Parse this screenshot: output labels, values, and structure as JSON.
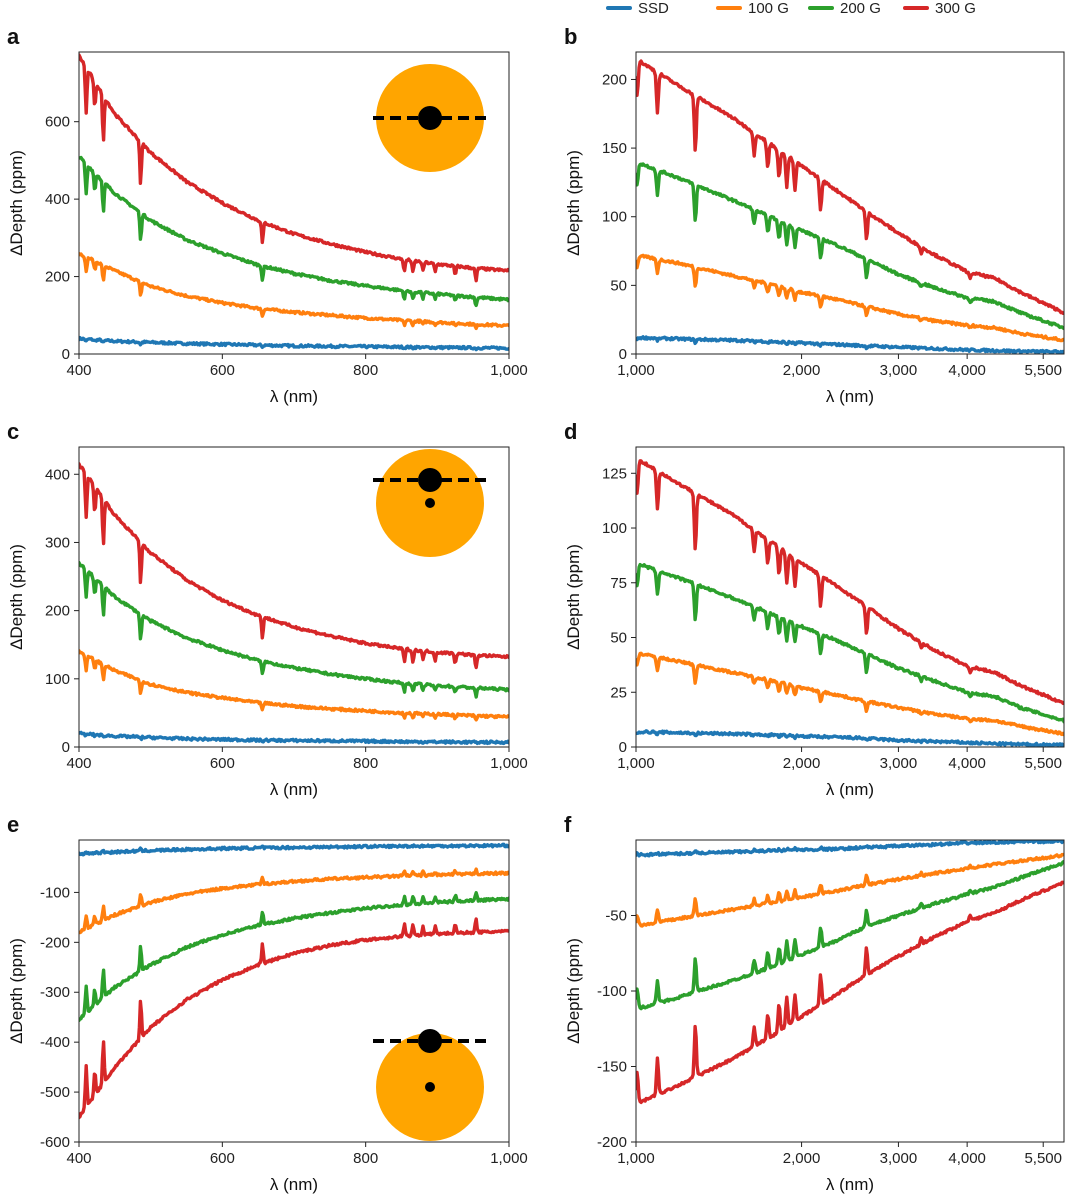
{
  "colors": {
    "SSD": "#1f77b4",
    "100 G": "#ff7f0e",
    "200 G": "#2ca02c",
    "300 G": "#d62728",
    "star": "#ffa500",
    "planet": "#000000"
  },
  "legend": [
    "SSD",
    "100 G",
    "200 G",
    "300 G"
  ],
  "chart_data": [
    {
      "panel": "a",
      "type": "line",
      "xscale": "linear",
      "xlabel": "λ (nm)",
      "ylabel": "ΔDepth (ppm)",
      "xlim": [
        400,
        1000
      ],
      "ylim": [
        0,
        780
      ],
      "xticks": [
        400,
        600,
        800,
        1000
      ],
      "xticklabels": [
        "400",
        "600",
        "800",
        "1,000"
      ],
      "yticks": [
        0,
        200,
        400,
        600
      ],
      "yticklabels": [
        "0",
        "200",
        "400",
        "600"
      ],
      "x": [
        400,
        450,
        500,
        550,
        600,
        650,
        700,
        750,
        800,
        850,
        900,
        950,
        1000
      ],
      "series": [
        {
          "name": "SSD",
          "values": [
            40,
            33,
            30,
            27,
            25,
            23,
            21,
            20,
            19,
            18,
            17,
            16,
            15
          ]
        },
        {
          "name": "100 G",
          "values": [
            260,
            215,
            175,
            150,
            132,
            118,
            108,
            100,
            93,
            87,
            82,
            77,
            73
          ]
        },
        {
          "name": "200 G",
          "values": [
            510,
            415,
            345,
            295,
            260,
            230,
            208,
            190,
            176,
            164,
            155,
            147,
            140
          ]
        },
        {
          "name": "300 G",
          "values": [
            770,
            620,
            520,
            445,
            390,
            345,
            310,
            285,
            263,
            245,
            232,
            222,
            215
          ]
        }
      ],
      "inset": "transit-center"
    },
    {
      "panel": "b",
      "type": "line",
      "xscale": "log",
      "xlabel": "λ (nm)",
      "ylabel": "ΔDepth (ppm)",
      "xlim": [
        1000,
        6000
      ],
      "ylim": [
        0,
        220
      ],
      "xticks": [
        1000,
        2000,
        3000,
        4000,
        5500
      ],
      "xticklabels": [
        "1,000",
        "2,000",
        "3,000",
        "4,000",
        "5,500"
      ],
      "yticks": [
        0,
        50,
        100,
        150,
        200
      ],
      "yticklabels": [
        "0",
        "50",
        "100",
        "150",
        "200"
      ],
      "x": [
        1000,
        1200,
        1500,
        1800,
        2000,
        2300,
        2600,
        3000,
        3500,
        4000,
        4500,
        5000,
        6000
      ],
      "series": [
        {
          "name": "SSD",
          "values": [
            12,
            11,
            10,
            9,
            8,
            7,
            6,
            5,
            4,
            3,
            2.5,
            2,
            1.5
          ]
        },
        {
          "name": "100 G",
          "values": [
            72,
            66,
            57,
            50,
            45,
            40,
            35,
            29,
            24,
            21,
            19,
            15,
            10
          ]
        },
        {
          "name": "200 G",
          "values": [
            140,
            128,
            112,
            98,
            90,
            80,
            70,
            58,
            48,
            41,
            38,
            30,
            19
          ]
        },
        {
          "name": "300 G",
          "values": [
            215,
            195,
            172,
            150,
            137,
            120,
            105,
            88,
            72,
            60,
            55,
            45,
            30
          ]
        }
      ]
    },
    {
      "panel": "c",
      "type": "line",
      "xscale": "linear",
      "xlabel": "λ (nm)",
      "ylabel": "ΔDepth (ppm)",
      "xlim": [
        400,
        1000
      ],
      "ylim": [
        0,
        440
      ],
      "xticks": [
        400,
        600,
        800,
        1000
      ],
      "xticklabels": [
        "400",
        "600",
        "800",
        "1,000"
      ],
      "yticks": [
        0,
        100,
        200,
        300,
        400
      ],
      "yticklabels": [
        "0",
        "100",
        "200",
        "300",
        "400"
      ],
      "x": [
        400,
        450,
        500,
        550,
        600,
        650,
        700,
        750,
        800,
        850,
        900,
        950,
        1000
      ],
      "series": [
        {
          "name": "SSD",
          "values": [
            20,
            16,
            14,
            12,
            11,
            10,
            9.5,
            9,
            8.5,
            8,
            7.5,
            7,
            7
          ]
        },
        {
          "name": "100 G",
          "values": [
            140,
            112,
            92,
            80,
            72,
            65,
            60,
            56,
            53,
            50,
            48,
            46,
            44
          ]
        },
        {
          "name": "200 G",
          "values": [
            270,
            220,
            185,
            160,
            142,
            127,
            116,
            107,
            100,
            94,
            90,
            87,
            84
          ]
        },
        {
          "name": "300 G",
          "values": [
            415,
            340,
            285,
            245,
            215,
            193,
            176,
            163,
            152,
            144,
            139,
            135,
            132
          ]
        }
      ],
      "inset": "transit-offset"
    },
    {
      "panel": "d",
      "type": "line",
      "xscale": "log",
      "xlabel": "λ (nm)",
      "ylabel": "ΔDepth (ppm)",
      "xlim": [
        1000,
        6000
      ],
      "ylim": [
        0,
        137
      ],
      "xticks": [
        1000,
        2000,
        3000,
        4000,
        5500
      ],
      "xticklabels": [
        "1,000",
        "2,000",
        "3,000",
        "4,000",
        "5,500"
      ],
      "yticks": [
        0,
        25,
        50,
        75,
        100,
        125
      ],
      "yticklabels": [
        "0",
        "25",
        "50",
        "75",
        "100",
        "125"
      ],
      "x": [
        1000,
        1200,
        1500,
        1800,
        2000,
        2300,
        2600,
        3000,
        3500,
        4000,
        4500,
        5000,
        6000
      ],
      "series": [
        {
          "name": "SSD",
          "values": [
            7,
            6.5,
            6,
            5.5,
            5,
            4.5,
            4,
            3,
            2.5,
            2,
            1.5,
            1.2,
            1
          ]
        },
        {
          "name": "100 G",
          "values": [
            43,
            39,
            34,
            30,
            27,
            24,
            21,
            18,
            15,
            13,
            12,
            9.5,
            6
          ]
        },
        {
          "name": "200 G",
          "values": [
            84,
            77,
            68,
            60,
            55,
            49,
            43,
            36,
            30,
            25,
            23,
            18,
            12
          ]
        },
        {
          "name": "300 G",
          "values": [
            132,
            120,
            106,
            92,
            84,
            74,
            65,
            54,
            44,
            37,
            34,
            28,
            20
          ]
        }
      ]
    },
    {
      "panel": "e",
      "type": "line",
      "xscale": "linear",
      "xlabel": "λ (nm)",
      "ylabel": "ΔDepth (ppm)",
      "xlim": [
        400,
        1000
      ],
      "ylim": [
        -600,
        5
      ],
      "xticks": [
        400,
        600,
        800,
        1000
      ],
      "xticklabels": [
        "400",
        "600",
        "800",
        "1,000"
      ],
      "yticks": [
        -100,
        -200,
        -300,
        -400,
        -500,
        -600
      ],
      "yticklabels": [
        "-100",
        "-200",
        "-300",
        "-400",
        "-500",
        "-600"
      ],
      "x": [
        400,
        450,
        500,
        550,
        600,
        650,
        700,
        750,
        800,
        850,
        900,
        950,
        1000
      ],
      "series": [
        {
          "name": "SSD",
          "values": [
            -23,
            -19,
            -16,
            -14,
            -12,
            -11,
            -10,
            -9,
            -8,
            -7.5,
            -7,
            -6.5,
            -6
          ]
        },
        {
          "name": "100 G",
          "values": [
            -180,
            -145,
            -120,
            -103,
            -92,
            -84,
            -78,
            -73,
            -70,
            -67,
            -65,
            -63,
            -61
          ]
        },
        {
          "name": "200 G",
          "values": [
            -355,
            -290,
            -245,
            -210,
            -185,
            -166,
            -152,
            -141,
            -132,
            -125,
            -120,
            -116,
            -113
          ]
        },
        {
          "name": "300 G",
          "values": [
            -550,
            -450,
            -370,
            -315,
            -275,
            -245,
            -222,
            -206,
            -195,
            -188,
            -183,
            -180,
            -178
          ]
        }
      ],
      "inset": "transit-limb"
    },
    {
      "panel": "f",
      "type": "line",
      "xscale": "log",
      "xlabel": "λ (nm)",
      "ylabel": "ΔDepth (ppm)",
      "xlim": [
        1000,
        6000
      ],
      "ylim": [
        -200,
        0
      ],
      "xticks": [
        1000,
        2000,
        3000,
        4000,
        5500
      ],
      "xticklabels": [
        "1,000",
        "2,000",
        "3,000",
        "4,000",
        "5,500"
      ],
      "yticks": [
        -50,
        -100,
        -150,
        -200
      ],
      "yticklabels": [
        "-50",
        "-100",
        "-150",
        "-200"
      ],
      "x": [
        1000,
        1200,
        1500,
        1800,
        2000,
        2300,
        2600,
        3000,
        3500,
        4000,
        4500,
        5000,
        6000
      ],
      "series": [
        {
          "name": "SSD",
          "values": [
            -10,
            -9,
            -8,
            -7,
            -6.5,
            -6,
            -5,
            -4,
            -3,
            -2,
            -1.5,
            -1,
            -1
          ]
        },
        {
          "name": "100 G",
          "values": [
            -57,
            -52,
            -46,
            -41,
            -38,
            -34,
            -30,
            -26,
            -22,
            -19,
            -16,
            -14,
            -10
          ]
        },
        {
          "name": "200 G",
          "values": [
            -112,
            -104,
            -93,
            -83,
            -76,
            -67,
            -58,
            -50,
            -42,
            -36,
            -31,
            -25,
            -15
          ]
        },
        {
          "name": "300 G",
          "values": [
            -175,
            -162,
            -145,
            -128,
            -117,
            -103,
            -90,
            -77,
            -64,
            -54,
            -48,
            -40,
            -28
          ]
        }
      ]
    }
  ]
}
